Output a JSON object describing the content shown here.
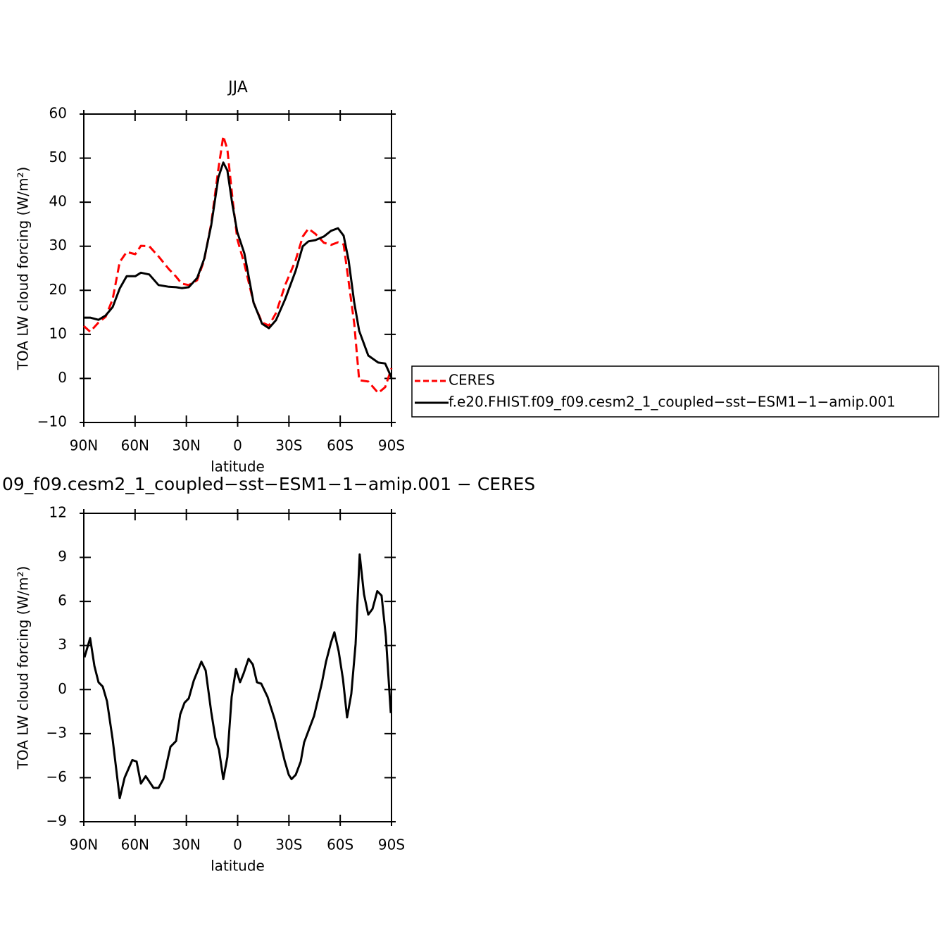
{
  "chart_data": [
    {
      "type": "line",
      "title": "JJA",
      "xlabel": "latitude",
      "ylabel": "TOA LW cloud forcing (W/m²)",
      "x": [
        90,
        86.3,
        81.4,
        77.2,
        73.1,
        69,
        64.9,
        59.9,
        56.6,
        51.7,
        46.3,
        40.2,
        36,
        32.7,
        28.6,
        23.7,
        19.6,
        15.5,
        11.3,
        8.4,
        6,
        3.1,
        0.2,
        -3.9,
        -9.3,
        -14.3,
        -18.3,
        -22.4,
        -27.8,
        -33.9,
        -38.1,
        -41.4,
        -45.5,
        -50.4,
        -54.6,
        -58.7,
        -62,
        -64.9,
        -68.2,
        -71.1,
        -76.4,
        -82.2,
        -86.3,
        -90
      ],
      "series": [
        {
          "name": "CERES",
          "color": "#ff0000",
          "dashed": true,
          "values": [
            11.9,
            10.6,
            12.7,
            14,
            18,
            26.4,
            28.7,
            28.2,
            30.1,
            30,
            27.7,
            24.8,
            23.1,
            21.5,
            21.2,
            22.3,
            26.8,
            35.1,
            47.5,
            55,
            52,
            41.1,
            31.6,
            26,
            17.2,
            12.7,
            12,
            14.8,
            21.2,
            26.8,
            32.2,
            34,
            32.8,
            30.8,
            30.3,
            30.9,
            30.4,
            22,
            12.4,
            -0.4,
            -0.7,
            -3.3,
            -2,
            2.3
          ]
        },
        {
          "name": "f.e20.FHIST.f09_f09.cesm2_1_coupled−sst−ESM1−1−amip.001",
          "color": "#000000",
          "dashed": false,
          "values": [
            13.8,
            13.8,
            13.3,
            14.3,
            16.2,
            20.4,
            23.2,
            23.2,
            24,
            23.6,
            21.2,
            20.8,
            20.7,
            20.5,
            20.7,
            22.8,
            27.1,
            34.7,
            45.6,
            49,
            47.2,
            39.5,
            33.2,
            28.4,
            17.2,
            12.4,
            11.4,
            13.2,
            18,
            24.4,
            30,
            31.1,
            31.4,
            32.2,
            33.5,
            34.1,
            32.4,
            26.8,
            17.2,
            10.8,
            5.2,
            3.6,
            3.4,
            0.2
          ]
        }
      ],
      "xlim": [
        90,
        -90
      ],
      "xticks": [
        {
          "value": 90,
          "label": "90N"
        },
        {
          "value": 60,
          "label": "60N"
        },
        {
          "value": 30,
          "label": "30N"
        },
        0,
        {
          "value": -30,
          "label": "30S"
        },
        {
          "value": -60,
          "label": "60S"
        },
        {
          "value": -90,
          "label": "90S"
        }
      ],
      "ylim": [
        -10,
        60
      ],
      "yticks": [
        {
          "value": -10,
          "label": "−10"
        },
        0,
        10,
        20,
        30,
        40,
        50,
        60
      ],
      "legend": "outside-right"
    },
    {
      "type": "line",
      "title": "09_f09.cesm2_1_coupled−sst−ESM1−1−amip.001 − CERES",
      "xlabel": "latitude",
      "ylabel": "TOA LW cloud forcing (W/m²)",
      "x": [
        89.6,
        86.3,
        83.8,
        81.4,
        78.9,
        76.4,
        73.1,
        69,
        66.1,
        61.6,
        59.1,
        56.6,
        53.8,
        49.2,
        46.3,
        43.5,
        39.3,
        36,
        33.6,
        31.1,
        28.6,
        25.7,
        21.2,
        18.7,
        15.5,
        13,
        10.9,
        8.4,
        6,
        3.5,
        1,
        -1.4,
        -3.5,
        -6.4,
        -8.9,
        -11.3,
        -13.8,
        -17.5,
        -21.6,
        -24.9,
        -27.4,
        -29.9,
        -31.5,
        -34,
        -36.9,
        -38.9,
        -44.7,
        -49.2,
        -51.7,
        -54.6,
        -56.6,
        -59.1,
        -61.6,
        -64,
        -66.5,
        -69,
        -71.4,
        -73.9,
        -76.4,
        -78.9,
        -81.7,
        -84.2,
        -86.7,
        -89.6
      ],
      "values": [
        2.2,
        3.5,
        1.6,
        0.5,
        0.2,
        -0.8,
        -3.4,
        -7.4,
        -6,
        -4.8,
        -4.9,
        -6.4,
        -5.9,
        -6.7,
        -6.7,
        -6.1,
        -3.9,
        -3.5,
        -1.7,
        -0.9,
        -0.6,
        0.6,
        1.9,
        1.3,
        -1.5,
        -3.3,
        -4.1,
        -6.1,
        -4.6,
        -0.5,
        1.4,
        0.5,
        1.1,
        2.1,
        1.7,
        0.5,
        0.4,
        -0.5,
        -2,
        -3.6,
        -4.8,
        -5.8,
        -6.1,
        -5.8,
        -4.9,
        -3.6,
        -1.8,
        0.4,
        1.9,
        3.2,
        3.9,
        2.6,
        0.7,
        -1.9,
        -0.3,
        3.1,
        9.2,
        6.5,
        5.1,
        5.5,
        6.7,
        6.4,
        3.6,
        -1.6
      ],
      "color": "#000000",
      "xlim": [
        90,
        -90
      ],
      "xticks": [
        {
          "value": 90,
          "label": "90N"
        },
        {
          "value": 60,
          "label": "60N"
        },
        {
          "value": 30,
          "label": "30N"
        },
        0,
        {
          "value": -30,
          "label": "30S"
        },
        {
          "value": -60,
          "label": "60S"
        },
        {
          "value": -90,
          "label": "90S"
        }
      ],
      "ylim": [
        -9,
        12
      ],
      "yticks": [
        {
          "value": -9,
          "label": "−9"
        },
        {
          "value": -6,
          "label": "−6"
        },
        {
          "value": -3,
          "label": "−3"
        },
        0,
        3,
        6,
        9,
        12
      ]
    }
  ]
}
